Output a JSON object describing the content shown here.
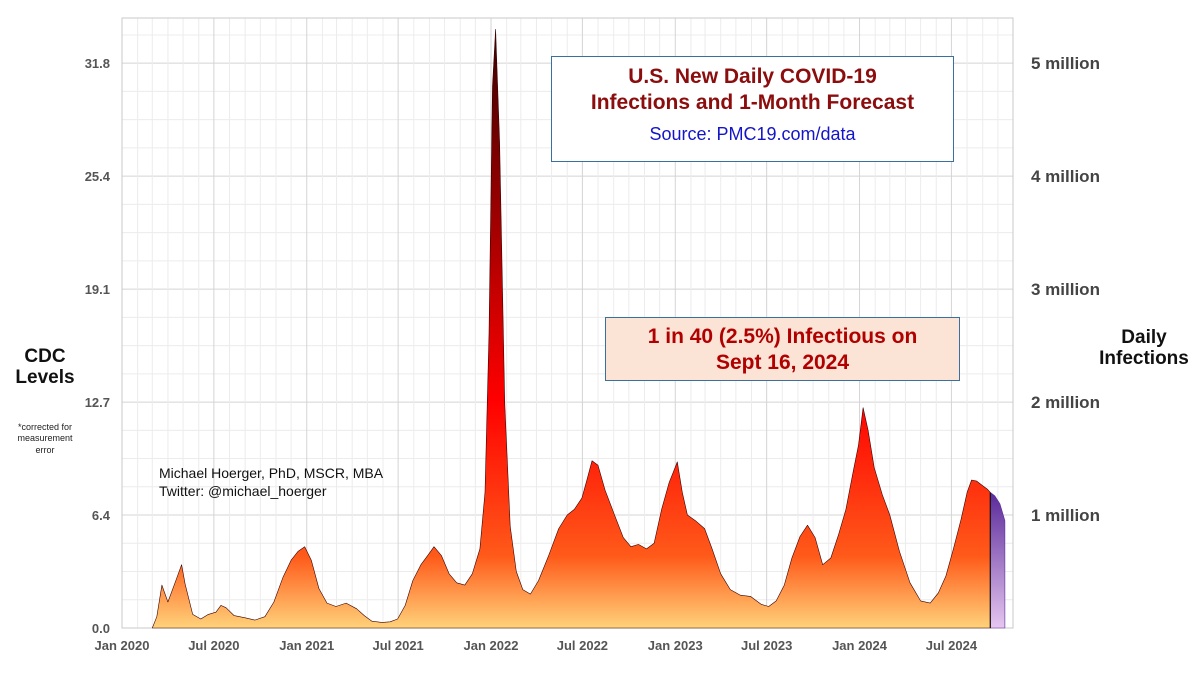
{
  "chart_data": {
    "type": "area",
    "title": "U.S. New Daily COVID-19 Infections and 1-Month Forecast",
    "subtitle": "Source: PMC19.com/data",
    "callout": [
      "1 in 40 (2.5%) Infectious on",
      "Sept 16, 2024"
    ],
    "credit": [
      "Michael Hoerger, PhD, MSCR, MBA",
      "Twitter: @michael_hoerger"
    ],
    "left_axis": {
      "title": [
        "CDC",
        "Levels"
      ],
      "note": [
        "*corrected for",
        "measurement",
        "error"
      ],
      "ticks": [
        "0.0",
        "6.4",
        "12.7",
        "19.1",
        "25.4",
        "31.8"
      ]
    },
    "right_axis": {
      "title": [
        "Daily",
        "Infections"
      ],
      "ticks": [
        "1 million",
        "2 million",
        "3 million",
        "4 million",
        "5 million"
      ]
    },
    "x_ticks": [
      "Jan 2020",
      "Jul 2020",
      "Jan 2021",
      "Jul 2021",
      "Jan 2022",
      "Jul 2022",
      "Jan 2023",
      "Jul 2023",
      "Jan 2024",
      "Jul 2024"
    ],
    "y_units": "daily infections",
    "ylim": [
      0,
      5400000
    ],
    "grid": true,
    "colors": {
      "peak": "#3a0000",
      "mid": "#ff0000",
      "base": "#ffd27a",
      "forecast_top": "#5a2a9a",
      "forecast_base": "#e6c6f0",
      "box_border": "#3a6f9e",
      "title": "#8b0d0d",
      "source": "#1414c8",
      "callout_text": "#b00000",
      "callout_bg": "#fbe3d6"
    },
    "series": [
      {
        "type": "observed",
        "x": [
          "2020-03-01",
          "2020-03-10",
          "2020-03-20",
          "2020-04-01",
          "2020-04-15",
          "2020-04-28",
          "2020-05-05",
          "2020-05-20",
          "2020-06-05",
          "2020-06-20",
          "2020-07-05",
          "2020-07-15",
          "2020-07-25",
          "2020-08-10",
          "2020-09-01",
          "2020-09-20",
          "2020-10-10",
          "2020-10-28",
          "2020-11-15",
          "2020-12-01",
          "2020-12-15",
          "2020-12-28",
          "2021-01-10",
          "2021-01-25",
          "2021-02-10",
          "2021-02-28",
          "2021-03-20",
          "2021-04-10",
          "2021-04-25",
          "2021-05-10",
          "2021-05-30",
          "2021-06-15",
          "2021-06-30",
          "2021-07-15",
          "2021-07-30",
          "2021-08-15",
          "2021-08-30",
          "2021-09-10",
          "2021-09-25",
          "2021-10-10",
          "2021-10-25",
          "2021-11-10",
          "2021-11-25",
          "2021-12-10",
          "2021-12-20",
          "2021-12-28",
          "2022-01-04",
          "2022-01-10",
          "2022-01-18",
          "2022-01-28",
          "2022-02-08",
          "2022-02-20",
          "2022-03-05",
          "2022-03-20",
          "2022-04-05",
          "2022-04-25",
          "2022-05-15",
          "2022-06-01",
          "2022-06-15",
          "2022-06-30",
          "2022-07-10",
          "2022-07-20",
          "2022-08-01",
          "2022-08-15",
          "2022-09-01",
          "2022-09-20",
          "2022-10-05",
          "2022-10-20",
          "2022-11-05",
          "2022-11-20",
          "2022-12-05",
          "2022-12-20",
          "2022-12-28",
          "2023-01-05",
          "2023-01-15",
          "2023-01-25",
          "2023-02-10",
          "2023-02-28",
          "2023-03-15",
          "2023-04-01",
          "2023-04-20",
          "2023-05-10",
          "2023-05-30",
          "2023-06-20",
          "2023-07-05",
          "2023-07-20",
          "2023-08-05",
          "2023-08-20",
          "2023-09-05",
          "2023-09-20",
          "2023-10-05",
          "2023-10-20",
          "2023-11-05",
          "2023-11-20",
          "2023-12-05",
          "2023-12-20",
          "2023-12-30",
          "2024-01-08",
          "2024-01-18",
          "2024-01-30",
          "2024-02-15",
          "2024-03-01",
          "2024-03-20",
          "2024-04-10",
          "2024-05-01",
          "2024-05-20",
          "2024-06-05",
          "2024-06-20",
          "2024-07-05",
          "2024-07-20",
          "2024-08-01",
          "2024-08-10",
          "2024-08-20",
          "2024-09-01",
          "2024-09-10",
          "2024-09-16"
        ],
        "y": [
          0,
          100000,
          380000,
          230000,
          400000,
          560000,
          390000,
          120000,
          80000,
          120000,
          140000,
          200000,
          180000,
          110000,
          90000,
          70000,
          100000,
          230000,
          450000,
          600000,
          680000,
          720000,
          600000,
          350000,
          220000,
          190000,
          220000,
          170000,
          110000,
          60000,
          50000,
          55000,
          80000,
          200000,
          420000,
          560000,
          650000,
          720000,
          640000,
          480000,
          400000,
          380000,
          480000,
          700000,
          1200000,
          2600000,
          4800000,
          5300000,
          4300000,
          2000000,
          900000,
          500000,
          340000,
          300000,
          420000,
          640000,
          880000,
          1000000,
          1050000,
          1150000,
          1310000,
          1480000,
          1440000,
          1220000,
          1020000,
          800000,
          720000,
          740000,
          700000,
          750000,
          1050000,
          1290000,
          1380000,
          1470000,
          1200000,
          1000000,
          950000,
          880000,
          700000,
          480000,
          340000,
          290000,
          280000,
          210000,
          190000,
          240000,
          380000,
          620000,
          810000,
          910000,
          800000,
          560000,
          620000,
          820000,
          1050000,
          1400000,
          1620000,
          1950000,
          1750000,
          1420000,
          1180000,
          1000000,
          680000,
          400000,
          240000,
          220000,
          310000,
          460000,
          700000,
          960000,
          1200000,
          1310000,
          1300000,
          1260000,
          1230000,
          1200000
        ]
      },
      {
        "type": "forecast",
        "x": [
          "2024-09-16",
          "2024-09-25",
          "2024-10-05",
          "2024-10-15"
        ],
        "y": [
          1200000,
          1170000,
          1100000,
          950000
        ]
      }
    ]
  }
}
